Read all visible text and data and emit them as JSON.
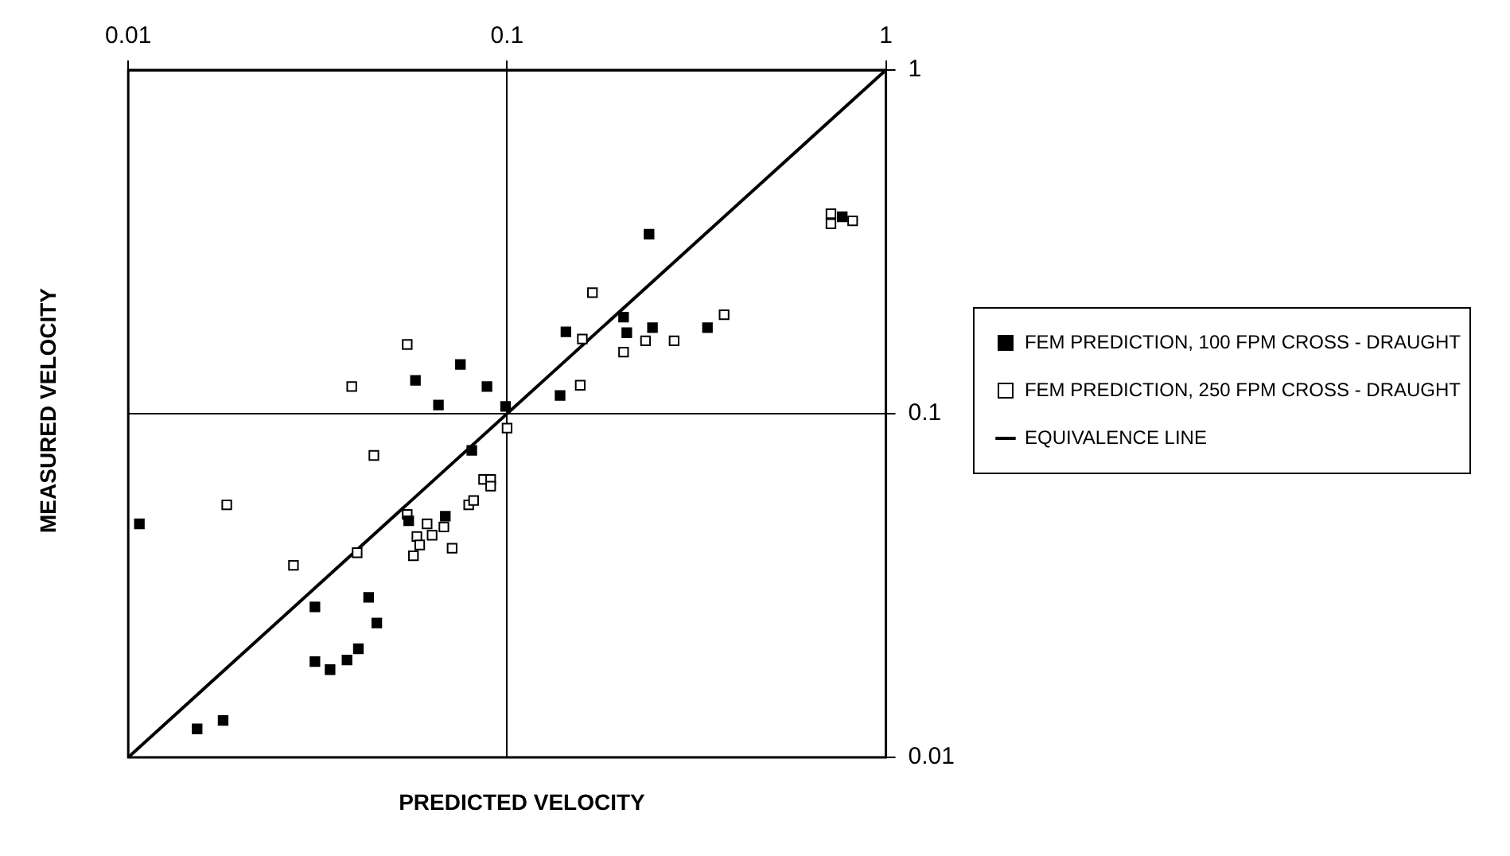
{
  "chart_data": {
    "type": "scatter",
    "xlabel": "PREDICTED VELOCITY",
    "ylabel": "MEASURED VELOCITY",
    "log": "xy",
    "xlim": [
      0.01,
      1
    ],
    "ylim": [
      0.01,
      1
    ],
    "xticks": [
      0.01,
      0.1,
      1
    ],
    "yticks": [
      0.01,
      0.1,
      1
    ],
    "grid": true,
    "legend": "right",
    "marker": "square",
    "series": [
      {
        "name": "FEM PREDICTION, 100 FPM CROSS - DRAUGHT",
        "color": "#000000",
        "x": [
          0.0107,
          0.0152,
          0.0178,
          0.0311,
          0.0431,
          0.0453,
          0.0311,
          0.0341,
          0.0378,
          0.0405,
          0.0807,
          0.0687,
          0.055,
          0.0991,
          0.0659,
          0.0573,
          0.0753,
          0.0885,
          0.143,
          0.138,
          0.203,
          0.237,
          0.207,
          0.242,
          0.338,
          0.767
        ],
        "values": [
          0.0478,
          0.0121,
          0.0128,
          0.0274,
          0.0292,
          0.0246,
          0.019,
          0.018,
          0.0192,
          0.0207,
          0.0782,
          0.0503,
          0.0488,
          0.105,
          0.106,
          0.125,
          0.139,
          0.12,
          0.173,
          0.113,
          0.191,
          0.333,
          0.172,
          0.178,
          0.178,
          0.374
        ]
      },
      {
        "name": "FEM PREDICTION, 250 FPM CROSS - DRAUGHT",
        "color": "#ffffff",
        "x": [
          0.0182,
          0.0273,
          0.0402,
          0.0445,
          0.1,
          0.0545,
          0.0615,
          0.0681,
          0.0578,
          0.0634,
          0.0566,
          0.0716,
          0.0588,
          0.0792,
          0.0816,
          0.0867,
          0.0905,
          0.0905,
          0.0389,
          0.0545,
          0.168,
          0.158,
          0.156,
          0.203,
          0.232,
          0.276,
          0.374,
          0.716,
          0.716,
          0.817
        ],
        "values": [
          0.0543,
          0.0362,
          0.0394,
          0.0756,
          0.0908,
          0.0509,
          0.0478,
          0.0468,
          0.0439,
          0.0443,
          0.0386,
          0.0406,
          0.0415,
          0.0543,
          0.0559,
          0.0644,
          0.0644,
          0.0615,
          0.12,
          0.159,
          0.225,
          0.165,
          0.121,
          0.151,
          0.163,
          0.163,
          0.194,
          0.382,
          0.357,
          0.364
        ]
      },
      {
        "name": "EQUIVALENCE LINE",
        "type": "line",
        "marker": "none",
        "color": "#000000",
        "x": [
          0.01,
          1
        ],
        "values": [
          0.01,
          1
        ]
      }
    ]
  }
}
